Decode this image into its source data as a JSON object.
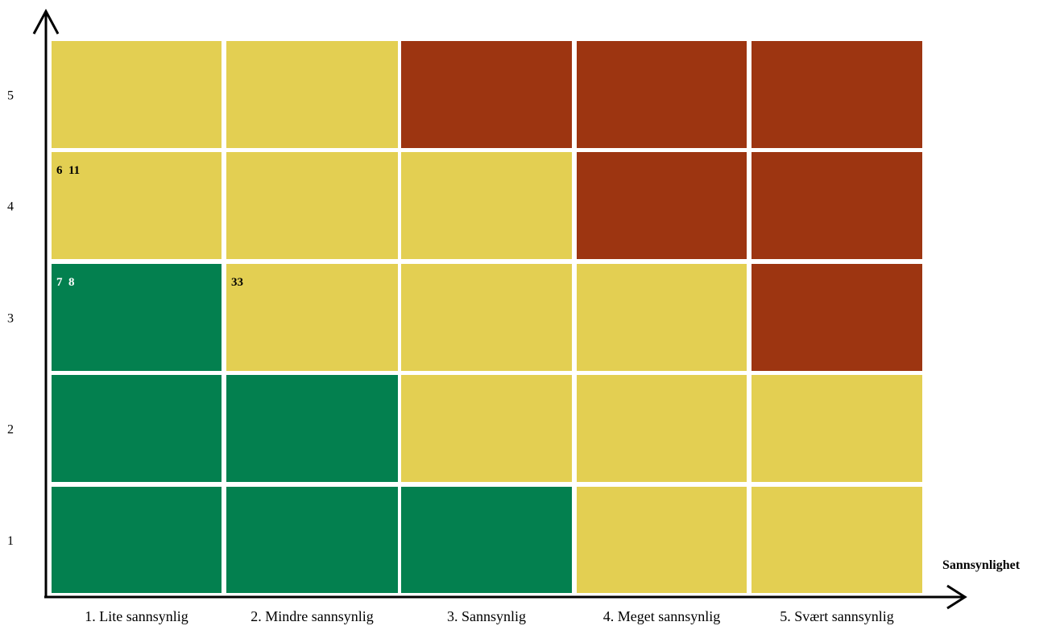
{
  "chart_data": {
    "type": "heatmap",
    "title": "",
    "xlabel": "Sannsynlighet",
    "ylabel": "",
    "x_categories": [
      "1. Lite sannsynlig",
      "2. Mindre sannsynlig",
      "3. Sannsynlig",
      "4. Meget sannsynlig",
      "5. Svært sannsynlig"
    ],
    "y_categories": [
      "1",
      "2",
      "3",
      "4",
      "5"
    ],
    "colors": {
      "green": "#03804F",
      "yellow": "#E3CF52",
      "red": "#9D3511"
    },
    "grid_rows_top_to_bottom": [
      [
        "yellow",
        "yellow",
        "red",
        "red",
        "red"
      ],
      [
        "yellow",
        "yellow",
        "yellow",
        "red",
        "red"
      ],
      [
        "green",
        "yellow",
        "yellow",
        "yellow",
        "red"
      ],
      [
        "green",
        "green",
        "yellow",
        "yellow",
        "yellow"
      ],
      [
        "green",
        "green",
        "green",
        "yellow",
        "yellow"
      ]
    ],
    "cell_labels": [
      {
        "x": 1,
        "y": 4,
        "text": "6 11",
        "color": "#000000"
      },
      {
        "x": 1,
        "y": 3,
        "text": "7 8",
        "color": "#ffffff"
      },
      {
        "x": 2,
        "y": 3,
        "text": "33",
        "color": "#000000"
      }
    ]
  }
}
